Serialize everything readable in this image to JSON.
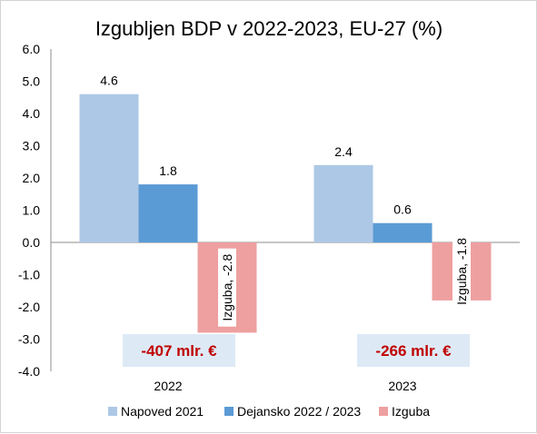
{
  "chart_data": {
    "type": "bar",
    "title": "Izgubljen BDP v 2022-2023, EU-27 (%)",
    "xlabel": "",
    "ylabel": "",
    "categories": [
      "2022",
      "2023"
    ],
    "ylim": [
      -4.0,
      6.0
    ],
    "yticks": [
      "6.0",
      "5.0",
      "4.0",
      "3.0",
      "2.0",
      "1.0",
      "0.0",
      "-1.0",
      "-2.0",
      "-3.0",
      "-4.0"
    ],
    "grid": false,
    "legend_position": "bottom",
    "series": [
      {
        "name": "Napoved 2021",
        "values": [
          4.6,
          2.4
        ],
        "labels": [
          "4.6",
          "2.4"
        ],
        "color": "#adc8e6"
      },
      {
        "name": "Dejansko 2022 / 2023",
        "values": [
          1.8,
          0.6
        ],
        "labels": [
          "1.8",
          "0.6"
        ],
        "color": "#5b9bd5"
      },
      {
        "name": "Izguba",
        "values": [
          -2.8,
          -1.8
        ],
        "labels": [
          "Izguba, -2.8",
          "Izguba, -1.8"
        ],
        "color": "#eea0a0"
      }
    ],
    "annotations": [
      {
        "category": "2022",
        "text": "-407 mlr. €",
        "color": "#c00000",
        "background": "#ddeaf6"
      },
      {
        "category": "2023",
        "text": "-266 mlr. €",
        "color": "#c00000",
        "background": "#ddeaf6"
      }
    ]
  }
}
